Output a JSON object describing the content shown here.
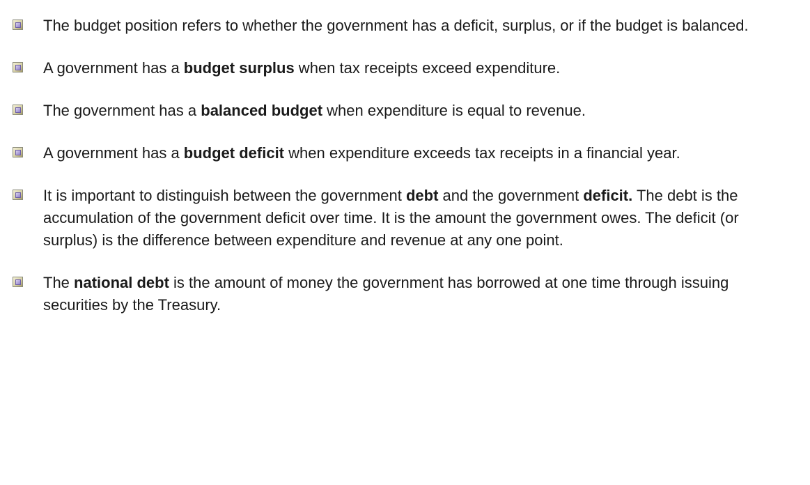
{
  "bullets": [
    {
      "parts": [
        {
          "text": "The budget position refers to whether the government has a deficit, surplus, or if the budget is balanced.",
          "bold": false
        }
      ]
    },
    {
      "parts": [
        {
          "text": "A government has a ",
          "bold": false
        },
        {
          "text": "budget surplus",
          "bold": true
        },
        {
          "text": " when tax receipts exceed expenditure.",
          "bold": false
        }
      ]
    },
    {
      "parts": [
        {
          "text": "The government has a ",
          "bold": false
        },
        {
          "text": "balanced budget",
          "bold": true
        },
        {
          "text": " when expenditure is equal to revenue.",
          "bold": false
        }
      ]
    },
    {
      "parts": [
        {
          "text": "A government has a ",
          "bold": false
        },
        {
          "text": "budget deficit",
          "bold": true
        },
        {
          "text": " when expenditure exceeds tax receipts in a financial year.",
          "bold": false
        }
      ]
    },
    {
      "parts": [
        {
          "text": "It is important to distinguish between the government ",
          "bold": false
        },
        {
          "text": "debt",
          "bold": true
        },
        {
          "text": " and the government ",
          "bold": false
        },
        {
          "text": "deficit.",
          "bold": true
        },
        {
          "text": " The debt is the accumulation of the government deficit over time. It is the amount the government owes. The deficit (or surplus) is the difference between expenditure and revenue at any one point.",
          "bold": false
        }
      ]
    },
    {
      "parts": [
        {
          "text": "The ",
          "bold": false
        },
        {
          "text": "national debt",
          "bold": true
        },
        {
          "text": " is the amount of money the government has borrowed at one time through issuing securities by the Treasury.",
          "bold": false
        }
      ]
    }
  ]
}
